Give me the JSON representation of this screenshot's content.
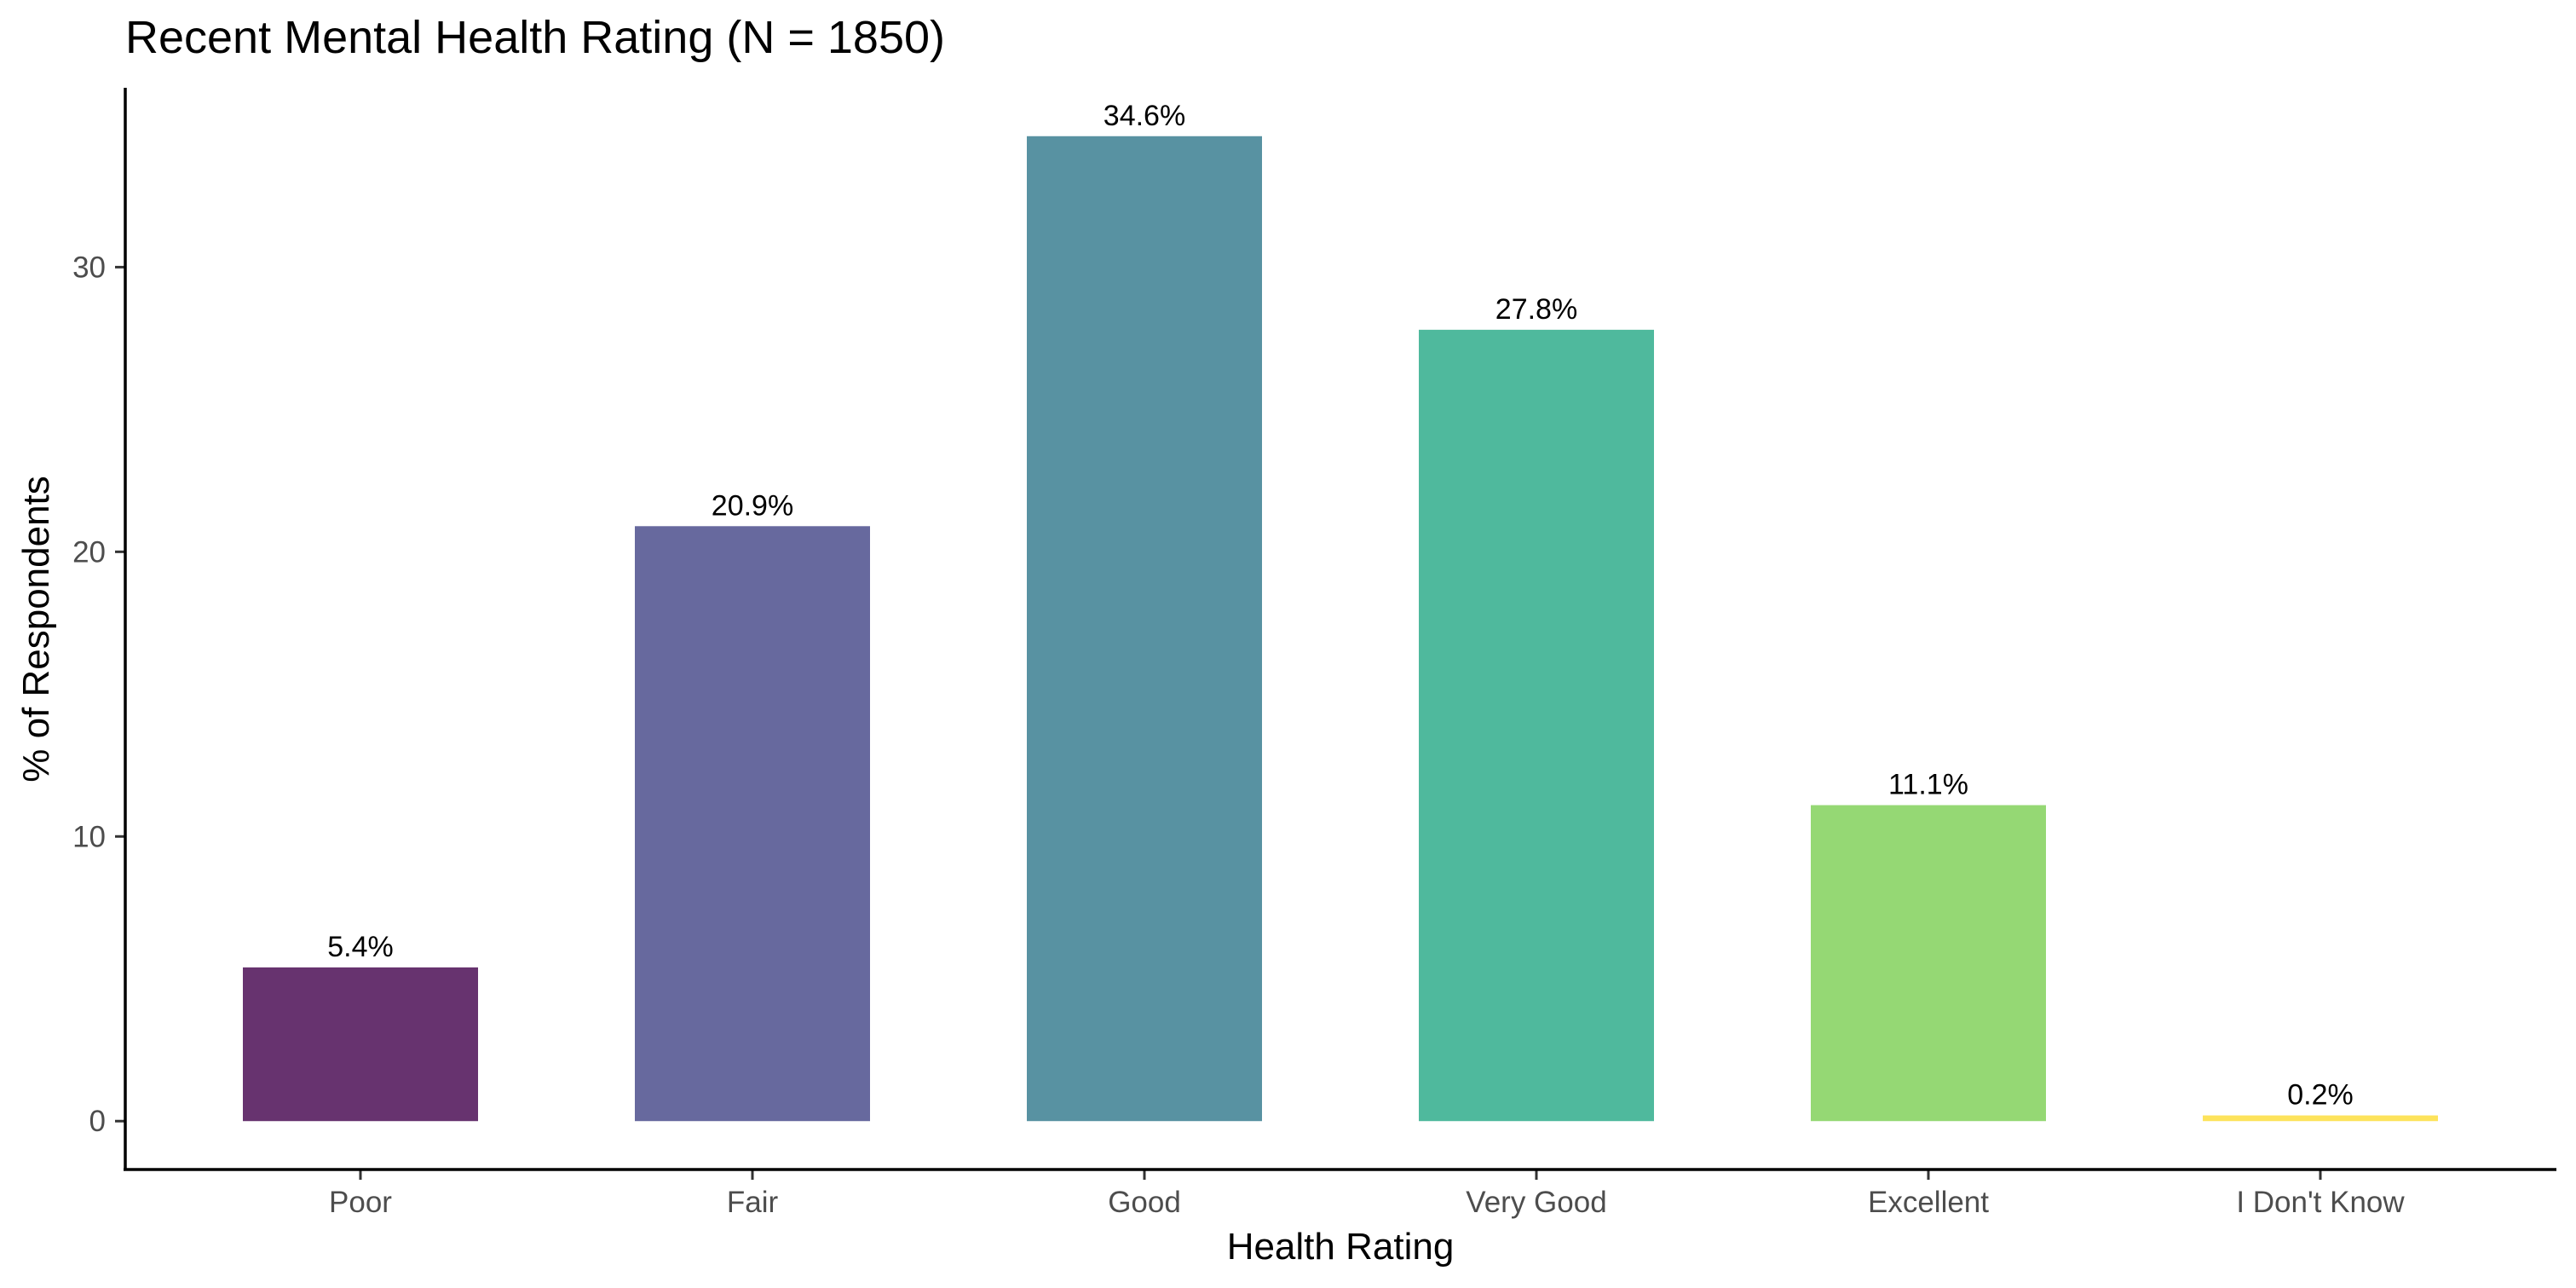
{
  "chart_data": {
    "type": "bar",
    "title": "Recent Mental Health Rating (N = 1850)",
    "xlabel": "Health Rating",
    "ylabel": "% of Respondents",
    "categories": [
      "Poor",
      "Fair",
      "Good",
      "Very Good",
      "Excellent",
      "I Don't Know"
    ],
    "values": [
      5.4,
      20.9,
      34.6,
      27.8,
      11.1,
      0.2
    ],
    "data_labels": [
      "5.4%",
      "20.9%",
      "34.6%",
      "27.8%",
      "11.1%",
      "0.2%"
    ],
    "colors": [
      "#67336f",
      "#67699e",
      "#5892a2",
      "#4fb99d",
      "#95d874",
      "#fde35b"
    ],
    "yticks": [
      0,
      10,
      20,
      30
    ],
    "ylim": [
      -1.7,
      36.3
    ],
    "grid": false,
    "legend": "none"
  }
}
